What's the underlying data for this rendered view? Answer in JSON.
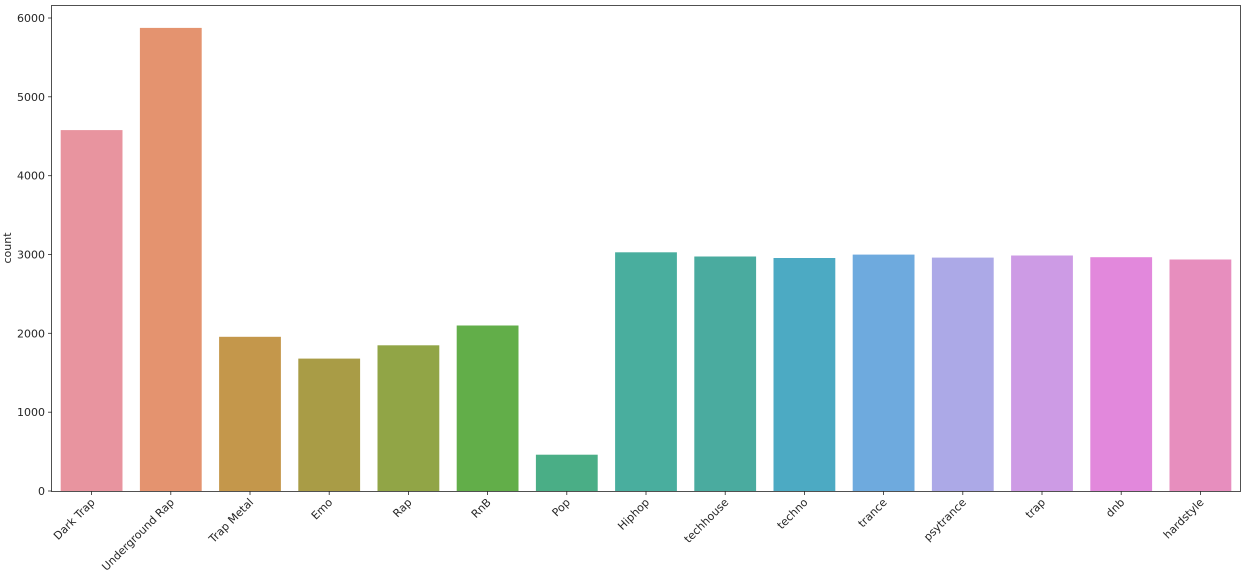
{
  "chart_data": {
    "type": "bar",
    "title": "",
    "xlabel": "",
    "ylabel": "count",
    "ylim": [
      0,
      6000
    ],
    "yticks": [
      0,
      1000,
      2000,
      3000,
      4000,
      5000,
      6000
    ],
    "ytick_labels": [
      "0",
      "1000",
      "2000",
      "3000",
      "4000",
      "5000",
      "6000"
    ],
    "grid": false,
    "legend": "none",
    "categories": [
      "Dark Trap",
      "Underground Rap",
      "Trap Metal",
      "Emo",
      "Rap",
      "RnB",
      "Pop",
      "Hiphop",
      "techhouse",
      "techno",
      "trance",
      "psytrance",
      "trap",
      "dnb",
      "hardstyle"
    ],
    "values": [
      4578,
      5875,
      1956,
      1680,
      1848,
      2099,
      461,
      3028,
      2975,
      2956,
      2999,
      2961,
      2987,
      2966,
      2936
    ],
    "colors": [
      "#e8949f",
      "#e4936f",
      "#c4974b",
      "#a99c46",
      "#91a546",
      "#62ae49",
      "#4aae86",
      "#49ae9e",
      "#4aab9f",
      "#4caac3",
      "#6eaade",
      "#aca9e7",
      "#cd9be5",
      "#e288dc",
      "#e78ebe"
    ]
  }
}
